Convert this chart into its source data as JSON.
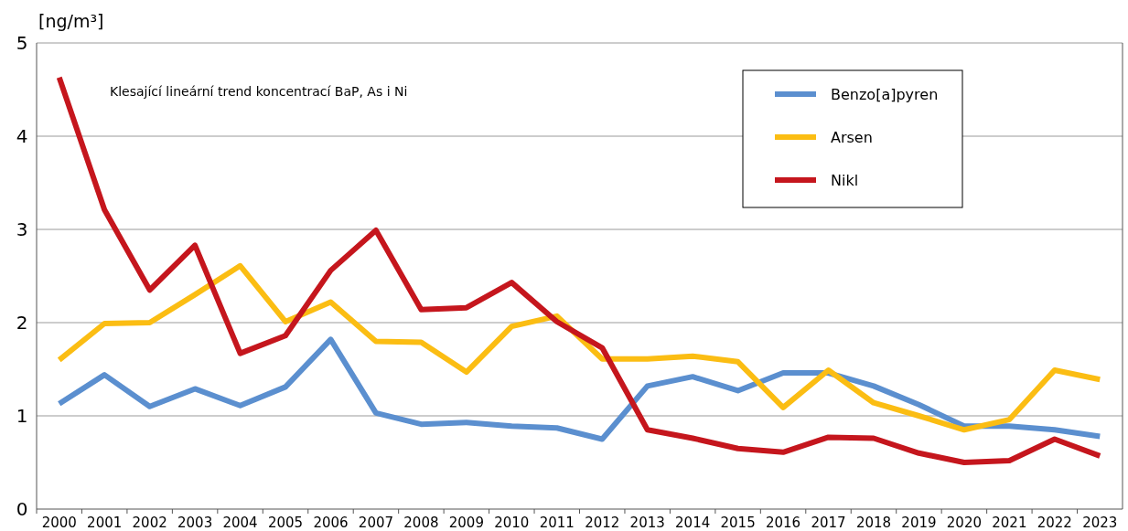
{
  "chart_data": {
    "type": "line",
    "ylabel": "[ng/m³]",
    "annotations": [
      "Klesající lineární trend koncentrací BaP, As i Ni"
    ],
    "categories": [
      "2000",
      "2001",
      "2002",
      "2003",
      "2004",
      "2005",
      "2006",
      "2007",
      "2008",
      "2009",
      "2010",
      "2011",
      "2012",
      "2013",
      "2014",
      "2015",
      "2016",
      "2017",
      "2018",
      "2019",
      "2020",
      "2021",
      "2022",
      "2023"
    ],
    "series": [
      {
        "name": "Benzo[a]pyren",
        "color": "#5b8fcf",
        "values": [
          1.13,
          1.44,
          1.1,
          1.29,
          1.11,
          1.31,
          1.82,
          1.03,
          0.91,
          0.93,
          0.89,
          0.87,
          0.75,
          1.32,
          1.42,
          1.27,
          1.46,
          1.46,
          1.32,
          1.12,
          0.89,
          0.89,
          0.85,
          0.78
        ]
      },
      {
        "name": "Arsen",
        "color": "#fbbd13",
        "values": [
          1.6,
          1.99,
          2.0,
          2.3,
          2.61,
          2.01,
          2.22,
          1.8,
          1.79,
          1.47,
          1.96,
          2.07,
          1.61,
          1.61,
          1.64,
          1.58,
          1.09,
          1.49,
          1.14,
          1.0,
          0.85,
          0.96,
          1.49,
          1.39
        ]
      },
      {
        "name": "Nikl",
        "color": "#c5161d",
        "values": [
          4.63,
          3.21,
          2.35,
          2.83,
          1.67,
          1.86,
          2.56,
          2.99,
          2.14,
          2.16,
          2.43,
          2.01,
          1.73,
          0.85,
          0.76,
          0.65,
          0.61,
          0.77,
          0.76,
          0.6,
          0.5,
          0.52,
          0.75,
          0.57
        ]
      }
    ],
    "ylim": [
      0,
      5
    ],
    "yticks": [
      0,
      1,
      2,
      3,
      4,
      5
    ],
    "grid": "y",
    "legend": "top right",
    "marker": "none",
    "line_style": "solid"
  }
}
